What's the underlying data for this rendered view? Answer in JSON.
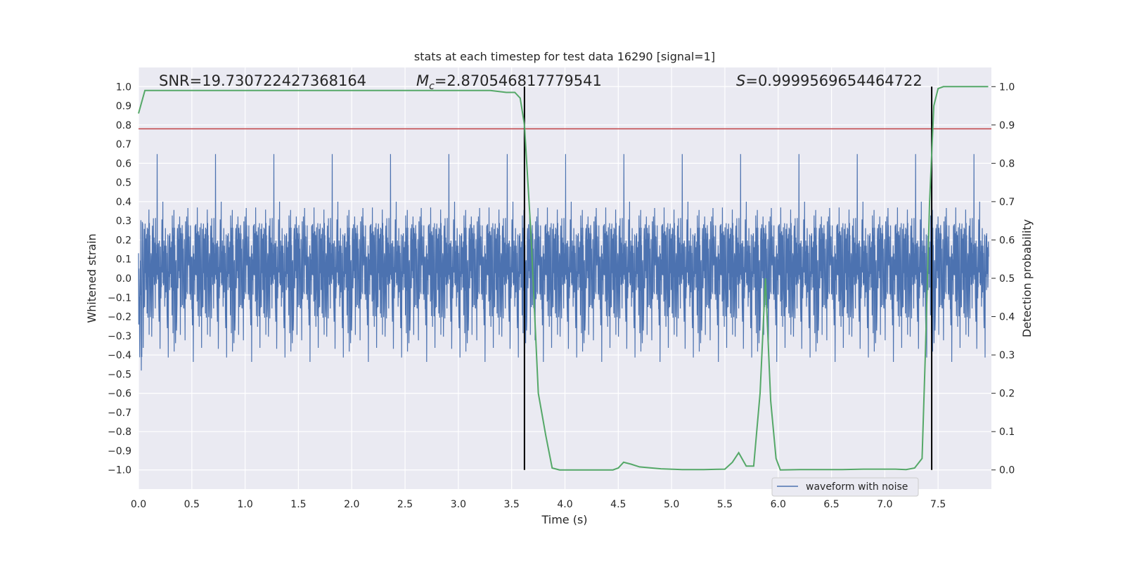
{
  "chart_data": {
    "type": "line",
    "title": "stats at each timestep for test data 16290 [signal=1]",
    "xlabel": "Time (s)",
    "ylabel_left": "Whitened strain",
    "ylabel_right": "Detection probability",
    "xlim": [
      0.0,
      8.0
    ],
    "ylim_left": [
      -1.1,
      1.1
    ],
    "ylim_right": [
      -0.05,
      1.05
    ],
    "x_ticks": [
      "0.0",
      "0.5",
      "1.0",
      "1.5",
      "2.0",
      "2.5",
      "3.0",
      "3.5",
      "4.0",
      "4.5",
      "5.0",
      "5.5",
      "6.0",
      "6.5",
      "7.0",
      "7.5"
    ],
    "y_left_ticks": [
      "1.0",
      "0.9",
      "0.8",
      "0.7",
      "0.6",
      "0.5",
      "0.4",
      "0.3",
      "0.2",
      "0.1",
      "0.0",
      "−0.1",
      "−0.2",
      "−0.3",
      "−0.4",
      "−0.5",
      "−0.6",
      "−0.7",
      "−0.8",
      "−0.9",
      "−1.0"
    ],
    "y_right_ticks": [
      "1.0",
      "0.9",
      "0.8",
      "0.7",
      "0.6",
      "0.5",
      "0.4",
      "0.3",
      "0.2",
      "0.1",
      "0.0"
    ],
    "grid": true,
    "legend_position": "lower-right",
    "annotations": {
      "snr": "SNR=19.730722427368164",
      "mc_symbol": "M",
      "mc_sub": "c",
      "mc_value": "=2.870546817779541",
      "s_symbol": "S",
      "s_value": "=0.9999569654464722"
    },
    "colors": {
      "background": "#eaeaf2",
      "waveform": "#4c72b0",
      "probability": "#55a868",
      "threshold": "#c44e52",
      "markers": "#000000"
    },
    "series": [
      {
        "name": "waveform with noise",
        "kind": "whitened strain (noise envelope, ~8000 samples)",
        "axis": "left"
      },
      {
        "kind": "detection probability",
        "axis": "right",
        "x": [
          0.0,
          0.06,
          0.5,
          1.0,
          1.5,
          2.0,
          2.5,
          3.0,
          3.3,
          3.45,
          3.53,
          3.58,
          3.62,
          3.68,
          3.75,
          3.82,
          3.88,
          3.95,
          4.1,
          4.3,
          4.45,
          4.5,
          4.55,
          4.62,
          4.7,
          4.9,
          5.1,
          5.3,
          5.5,
          5.57,
          5.63,
          5.7,
          5.77,
          5.83,
          5.88,
          5.93,
          5.98,
          6.02,
          6.2,
          6.4,
          6.6,
          6.8,
          7.0,
          7.1,
          7.2,
          7.28,
          7.35,
          7.38,
          7.42,
          7.46,
          7.5,
          7.55,
          7.65,
          7.8,
          7.97
        ],
        "y": [
          0.93,
          0.99,
          0.99,
          0.99,
          0.99,
          0.99,
          0.99,
          0.99,
          0.99,
          0.985,
          0.985,
          0.97,
          0.9,
          0.62,
          0.2,
          0.09,
          0.005,
          0.0,
          0.0,
          0.0,
          0.0,
          0.005,
          0.02,
          0.015,
          0.008,
          0.003,
          0.001,
          0.001,
          0.002,
          0.02,
          0.045,
          0.01,
          0.01,
          0.2,
          0.5,
          0.18,
          0.03,
          0.0,
          0.001,
          0.001,
          0.001,
          0.002,
          0.002,
          0.002,
          0.001,
          0.005,
          0.03,
          0.3,
          0.7,
          0.95,
          0.995,
          1.0,
          1.0,
          1.0,
          1.0
        ]
      }
    ],
    "threshold_left": 0.78,
    "vertical_markers_x": [
      3.62,
      7.44
    ]
  }
}
